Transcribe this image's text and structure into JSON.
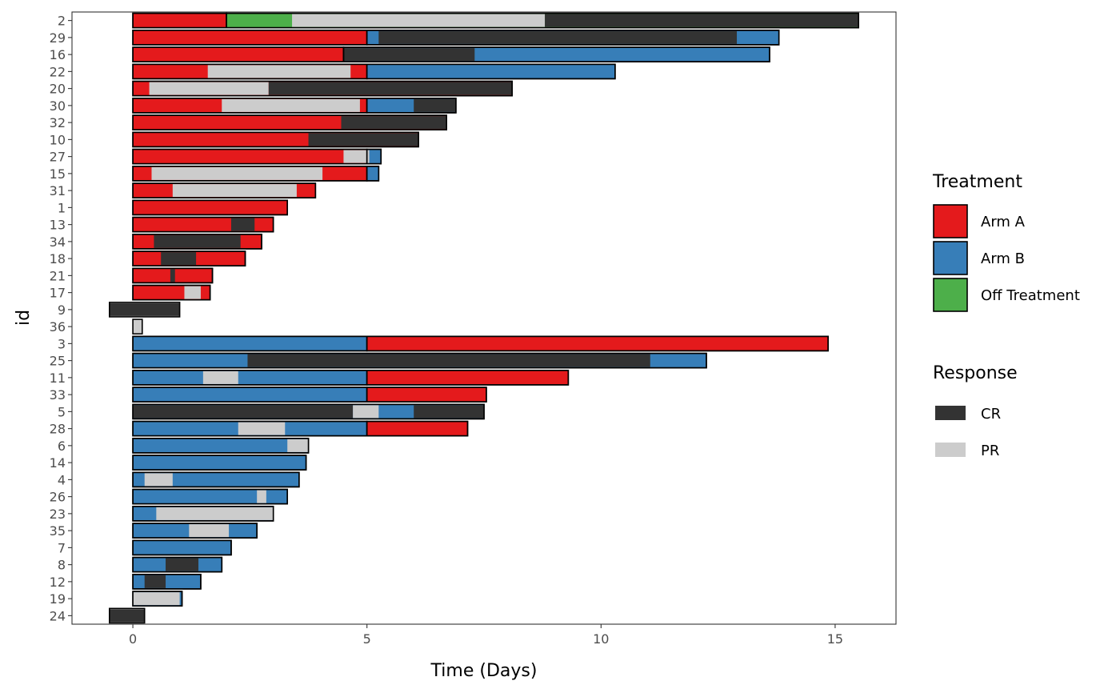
{
  "chart_data": {
    "type": "swimmer",
    "xlabel": "Time (Days)",
    "ylabel": "id",
    "xlim": [
      -1.3,
      16.3
    ],
    "x_ticks": [
      0,
      5,
      10,
      15
    ],
    "grid": false,
    "legend_position": "right",
    "legends": [
      {
        "title": "Treatment",
        "entries": [
          {
            "label": "Arm A",
            "color": "#E41A1C"
          },
          {
            "label": "Arm B",
            "color": "#377EB8"
          },
          {
            "label": "Off Treatment",
            "color": "#4DAF4A"
          }
        ]
      },
      {
        "title": "Response",
        "entries": [
          {
            "label": "CR",
            "color": "#333333"
          },
          {
            "label": "PR",
            "color": "#CCCCCC"
          }
        ]
      }
    ],
    "colors": {
      "Arm A": "#E41A1C",
      "Arm B": "#377EB8",
      "Off Treatment": "#4DAF4A",
      "CR": "#333333",
      "PR": "#CCCCCC"
    },
    "ids": [
      "2",
      "29",
      "16",
      "22",
      "20",
      "30",
      "32",
      "10",
      "27",
      "15",
      "31",
      "1",
      "13",
      "34",
      "18",
      "21",
      "17",
      "9",
      "36",
      "3",
      "25",
      "11",
      "33",
      "5",
      "28",
      "6",
      "14",
      "4",
      "26",
      "23",
      "35",
      "7",
      "8",
      "12",
      "19",
      "24"
    ],
    "treatment_segments": [
      {
        "id": "2",
        "treatment": "Arm A",
        "start": 0,
        "end": 2.0
      },
      {
        "id": "2",
        "treatment": "Off Treatment",
        "start": 2.0,
        "end": 15.5
      },
      {
        "id": "29",
        "treatment": "Arm A",
        "start": 0,
        "end": 5.0
      },
      {
        "id": "29",
        "treatment": "Arm B",
        "start": 5.0,
        "end": 13.8
      },
      {
        "id": "16",
        "treatment": "Arm A",
        "start": 0,
        "end": 4.5
      },
      {
        "id": "16",
        "treatment": "Arm B",
        "start": 4.5,
        "end": 13.6
      },
      {
        "id": "22",
        "treatment": "Arm A",
        "start": 0,
        "end": 5.0
      },
      {
        "id": "22",
        "treatment": "Arm B",
        "start": 5.0,
        "end": 10.3
      },
      {
        "id": "20",
        "treatment": "Arm A",
        "start": 0,
        "end": 8.1
      },
      {
        "id": "30",
        "treatment": "Arm A",
        "start": 0,
        "end": 5.0
      },
      {
        "id": "30",
        "treatment": "Arm B",
        "start": 5.0,
        "end": 6.9
      },
      {
        "id": "32",
        "treatment": "Arm A",
        "start": 0,
        "end": 6.7
      },
      {
        "id": "10",
        "treatment": "Arm A",
        "start": 0,
        "end": 6.1
      },
      {
        "id": "27",
        "treatment": "Arm A",
        "start": 0,
        "end": 5.0
      },
      {
        "id": "27",
        "treatment": "Arm B",
        "start": 5.0,
        "end": 5.3
      },
      {
        "id": "15",
        "treatment": "Arm A",
        "start": 0,
        "end": 5.0
      },
      {
        "id": "15",
        "treatment": "Arm B",
        "start": 5.0,
        "end": 5.25
      },
      {
        "id": "31",
        "treatment": "Arm A",
        "start": 0,
        "end": 3.9
      },
      {
        "id": "1",
        "treatment": "Arm A",
        "start": 0,
        "end": 3.3
      },
      {
        "id": "13",
        "treatment": "Arm A",
        "start": 0,
        "end": 3.0
      },
      {
        "id": "34",
        "treatment": "Arm A",
        "start": 0,
        "end": 2.75
      },
      {
        "id": "18",
        "treatment": "Arm A",
        "start": 0,
        "end": 2.4
      },
      {
        "id": "21",
        "treatment": "Arm A",
        "start": 0,
        "end": 1.7
      },
      {
        "id": "17",
        "treatment": "Arm A",
        "start": 0,
        "end": 1.65
      },
      {
        "id": "3",
        "treatment": "Arm B",
        "start": 0,
        "end": 5.0
      },
      {
        "id": "3",
        "treatment": "Arm A",
        "start": 5.0,
        "end": 14.85
      },
      {
        "id": "25",
        "treatment": "Arm B",
        "start": 0,
        "end": 12.25
      },
      {
        "id": "11",
        "treatment": "Arm B",
        "start": 0,
        "end": 5.0
      },
      {
        "id": "11",
        "treatment": "Arm A",
        "start": 5.0,
        "end": 9.3
      },
      {
        "id": "33",
        "treatment": "Arm B",
        "start": 0,
        "end": 5.0
      },
      {
        "id": "33",
        "treatment": "Arm A",
        "start": 5.0,
        "end": 7.55
      },
      {
        "id": "5",
        "treatment": "Arm B",
        "start": 0,
        "end": 7.5
      },
      {
        "id": "28",
        "treatment": "Arm B",
        "start": 0,
        "end": 5.0
      },
      {
        "id": "28",
        "treatment": "Arm A",
        "start": 5.0,
        "end": 7.15
      },
      {
        "id": "6",
        "treatment": "Arm B",
        "start": 0,
        "end": 3.75
      },
      {
        "id": "14",
        "treatment": "Arm B",
        "start": 0,
        "end": 3.7
      },
      {
        "id": "4",
        "treatment": "Arm B",
        "start": 0,
        "end": 3.55
      },
      {
        "id": "26",
        "treatment": "Arm B",
        "start": 0,
        "end": 3.3
      },
      {
        "id": "23",
        "treatment": "Arm B",
        "start": 0,
        "end": 3.0
      },
      {
        "id": "35",
        "treatment": "Arm B",
        "start": 0,
        "end": 2.65
      },
      {
        "id": "7",
        "treatment": "Arm B",
        "start": 0,
        "end": 2.1
      },
      {
        "id": "8",
        "treatment": "Arm B",
        "start": 0,
        "end": 1.9
      },
      {
        "id": "12",
        "treatment": "Arm B",
        "start": 0,
        "end": 1.45
      },
      {
        "id": "19",
        "treatment": "Arm B",
        "start": 0,
        "end": 1.05
      }
    ],
    "response_segments": [
      {
        "id": "2",
        "response": "PR",
        "start": 3.4,
        "end": 8.8
      },
      {
        "id": "2",
        "response": "CR",
        "start": 8.8,
        "end": 15.5
      },
      {
        "id": "29",
        "response": "CR",
        "start": 5.25,
        "end": 12.9
      },
      {
        "id": "16",
        "response": "CR",
        "start": 4.5,
        "end": 7.3
      },
      {
        "id": "22",
        "response": "PR",
        "start": 1.6,
        "end": 4.65
      },
      {
        "id": "20",
        "response": "PR",
        "start": 0.35,
        "end": 2.9
      },
      {
        "id": "20",
        "response": "CR",
        "start": 2.9,
        "end": 8.1
      },
      {
        "id": "30",
        "response": "PR",
        "start": 1.9,
        "end": 4.85
      },
      {
        "id": "30",
        "response": "CR",
        "start": 6.0,
        "end": 6.9
      },
      {
        "id": "32",
        "response": "CR",
        "start": 4.45,
        "end": 6.7
      },
      {
        "id": "10",
        "response": "CR",
        "start": 3.75,
        "end": 6.1
      },
      {
        "id": "27",
        "response": "PR",
        "start": 4.5,
        "end": 5.05
      },
      {
        "id": "15",
        "response": "PR",
        "start": 0.4,
        "end": 4.05
      },
      {
        "id": "31",
        "response": "PR",
        "start": 0.85,
        "end": 3.5
      },
      {
        "id": "13",
        "response": "CR",
        "start": 2.1,
        "end": 2.6
      },
      {
        "id": "34",
        "response": "CR",
        "start": 0.45,
        "end": 2.3
      },
      {
        "id": "18",
        "response": "CR",
        "start": 0.6,
        "end": 1.35
      },
      {
        "id": "21",
        "response": "CR",
        "start": 0.8,
        "end": 0.9
      },
      {
        "id": "17",
        "response": "PR",
        "start": 1.1,
        "end": 1.45
      },
      {
        "id": "9",
        "response": "CR",
        "start": -0.5,
        "end": 1.0
      },
      {
        "id": "36",
        "response": "PR",
        "start": 0,
        "end": 0.2
      },
      {
        "id": "25",
        "response": "CR",
        "start": 2.45,
        "end": 11.05
      },
      {
        "id": "11",
        "response": "PR",
        "start": 1.5,
        "end": 2.25
      },
      {
        "id": "5",
        "response": "CR",
        "start": 0,
        "end": 4.7
      },
      {
        "id": "5",
        "response": "PR",
        "start": 4.7,
        "end": 5.25
      },
      {
        "id": "5",
        "response": "CR",
        "start": 6.0,
        "end": 7.5
      },
      {
        "id": "28",
        "response": "PR",
        "start": 2.25,
        "end": 3.25
      },
      {
        "id": "6",
        "response": "PR",
        "start": 3.3,
        "end": 3.75
      },
      {
        "id": "4",
        "response": "PR",
        "start": 0.25,
        "end": 0.85
      },
      {
        "id": "26",
        "response": "PR",
        "start": 2.65,
        "end": 2.85
      },
      {
        "id": "23",
        "response": "PR",
        "start": 0.5,
        "end": 3.0
      },
      {
        "id": "35",
        "response": "PR",
        "start": 1.2,
        "end": 2.05
      },
      {
        "id": "8",
        "response": "CR",
        "start": 0.7,
        "end": 1.4
      },
      {
        "id": "12",
        "response": "CR",
        "start": 0.25,
        "end": 0.7
      },
      {
        "id": "19",
        "response": "PR",
        "start": 0,
        "end": 1.0
      },
      {
        "id": "24",
        "response": "CR",
        "start": -0.5,
        "end": 0.25
      }
    ]
  }
}
